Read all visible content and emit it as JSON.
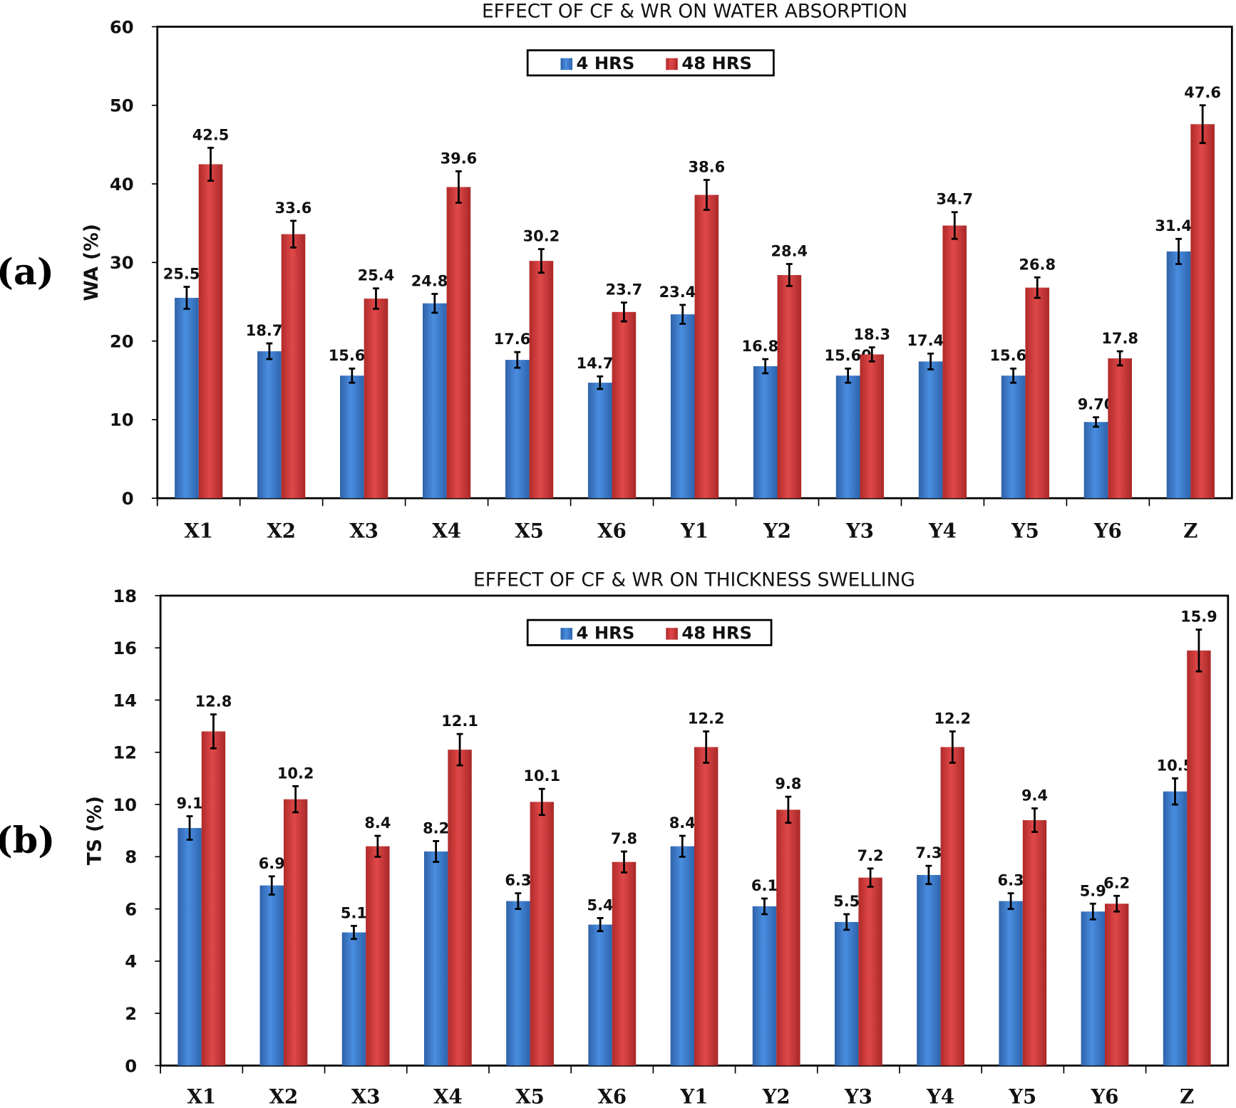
{
  "chart_data": [
    {
      "type": "bar",
      "panel_label": "(a)",
      "title": "EFFECT OF CF & WR ON WATER ABSORPTION",
      "xlabel": "",
      "ylabel": "WA (%)",
      "ylim": [
        0,
        60
      ],
      "yticks": [
        "0",
        "10",
        "20",
        "30",
        "40",
        "50",
        "60"
      ],
      "categories": [
        "X1",
        "X2",
        "X3",
        "X4",
        "X5",
        "X6",
        "Y1",
        "Y2",
        "Y3",
        "Y4",
        "Y5",
        "Y6",
        "Z"
      ],
      "legend_position": "top-center",
      "series": [
        {
          "name": "4 HRS",
          "color": "#3a7fd0",
          "values": [
            25.5,
            18.7,
            15.6,
            24.8,
            17.6,
            14.7,
            23.4,
            16.8,
            15.6,
            17.4,
            15.6,
            9.7,
            31.4
          ],
          "labels": [
            "25.50",
            "18.70",
            "15.60",
            "24.80",
            "17.60",
            "14.70",
            "23.40",
            "16.80",
            "15.60",
            "17.40",
            "15.60",
            "9.70",
            "31.40"
          ],
          "error": [
            1.4,
            1.0,
            0.9,
            1.2,
            1.0,
            0.8,
            1.2,
            0.9,
            0.9,
            1.0,
            0.9,
            0.6,
            1.6
          ]
        },
        {
          "name": "48 HRS",
          "color": "#d43b3b",
          "values": [
            42.5,
            33.6,
            25.4,
            39.6,
            30.2,
            23.7,
            38.6,
            28.4,
            18.3,
            34.7,
            26.8,
            17.8,
            47.6
          ],
          "labels": [
            "42.5",
            "33.6",
            "25.4",
            "39.6",
            "30.2",
            "23.7",
            "38.6",
            "28.4",
            "18.3",
            "34.7",
            "26.8",
            "17.8",
            "47.6"
          ],
          "error": [
            2.1,
            1.7,
            1.3,
            2.0,
            1.5,
            1.2,
            1.9,
            1.4,
            0.9,
            1.7,
            1.3,
            0.9,
            2.4
          ]
        }
      ]
    },
    {
      "type": "bar",
      "panel_label": "(b)",
      "title": "EFFECT OF CF & WR ON THICKNESS SWELLING",
      "xlabel": "",
      "ylabel": "TS (%)",
      "ylim": [
        0,
        18
      ],
      "yticks": [
        "0",
        "2",
        "4",
        "6",
        "8",
        "10",
        "12",
        "14",
        "16",
        "18"
      ],
      "categories": [
        "X1",
        "X2",
        "X3",
        "X4",
        "X5",
        "X6",
        "Y1",
        "Y2",
        "Y3",
        "Y4",
        "Y5",
        "Y6",
        "Z"
      ],
      "legend_position": "top-center",
      "series": [
        {
          "name": "4 HRS",
          "color": "#3a7fd0",
          "values": [
            9.1,
            6.9,
            5.1,
            8.2,
            6.3,
            5.4,
            8.4,
            6.1,
            5.5,
            7.3,
            6.3,
            5.9,
            10.5
          ],
          "labels": [
            "9.1",
            "6.9",
            "5.1",
            "8.2",
            "6.3",
            "5.4",
            "8.4",
            "6.1",
            "5.5",
            "7.3",
            "6.3",
            "5.9",
            "10.5"
          ],
          "error": [
            0.45,
            0.35,
            0.25,
            0.4,
            0.3,
            0.25,
            0.4,
            0.3,
            0.3,
            0.35,
            0.3,
            0.3,
            0.5
          ]
        },
        {
          "name": "48 HRS",
          "color": "#d43b3b",
          "values": [
            12.8,
            10.2,
            8.4,
            12.1,
            10.1,
            7.8,
            12.2,
            9.8,
            7.2,
            12.2,
            9.4,
            6.2,
            15.9
          ],
          "labels": [
            "12.8",
            "10.2",
            "8.4",
            "12.1",
            "10.1",
            "7.8",
            "12.2",
            "9.8",
            "7.2",
            "12.2",
            "9.4",
            "6.2",
            "15.9"
          ],
          "error": [
            0.65,
            0.5,
            0.4,
            0.6,
            0.5,
            0.4,
            0.6,
            0.5,
            0.35,
            0.6,
            0.45,
            0.3,
            0.8
          ]
        }
      ]
    }
  ]
}
